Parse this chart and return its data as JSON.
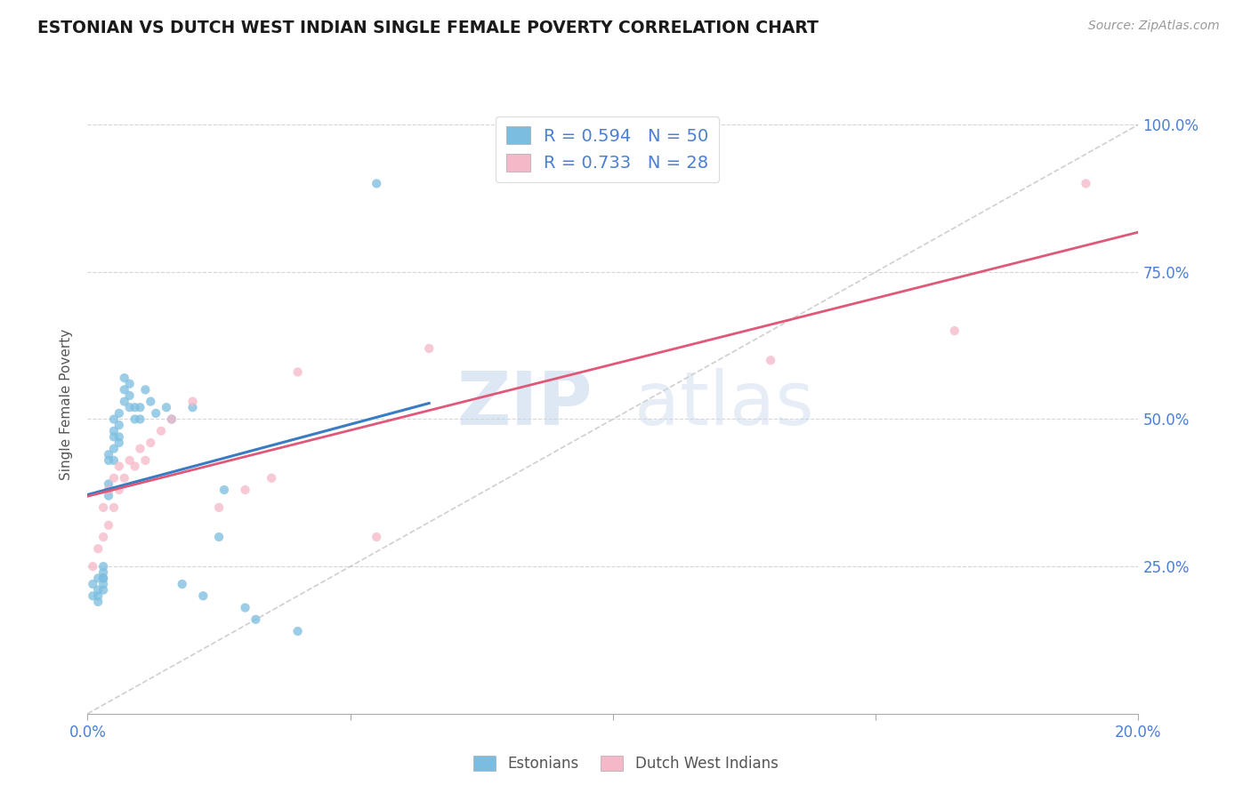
{
  "title": "ESTONIAN VS DUTCH WEST INDIAN SINGLE FEMALE POVERTY CORRELATION CHART",
  "source_text": "Source: ZipAtlas.com",
  "ylabel": "Single Female Poverty",
  "watermark_zip": "ZIP",
  "watermark_atlas": "atlas",
  "legend_label1": "Estonians",
  "legend_label2": "Dutch West Indians",
  "r1": 0.594,
  "n1": 50,
  "r2": 0.733,
  "n2": 28,
  "color1": "#7bbde0",
  "color2": "#f5b8c8",
  "line_color1": "#3a7cc4",
  "line_color2": "#e05878",
  "ref_line_color": "#bbbbbb",
  "axis_color": "#4a7fd4",
  "grid_color": "#cccccc",
  "title_color": "#1a1a1a",
  "background_color": "#ffffff",
  "xmin": 0.0,
  "xmax": 0.2,
  "ymin": 0.0,
  "ymax": 1.05,
  "yticks": [
    0.0,
    0.25,
    0.5,
    0.75,
    1.0
  ],
  "ytick_labels": [
    "",
    "25.0%",
    "50.0%",
    "75.0%",
    "100.0%"
  ],
  "xticks": [
    0.0,
    0.05,
    0.1,
    0.15,
    0.2
  ],
  "xtick_labels": [
    "0.0%",
    "",
    "",
    "",
    "20.0%"
  ],
  "estonians_x": [
    0.001,
    0.001,
    0.002,
    0.002,
    0.002,
    0.002,
    0.003,
    0.003,
    0.003,
    0.003,
    0.003,
    0.003,
    0.004,
    0.004,
    0.004,
    0.004,
    0.004,
    0.005,
    0.005,
    0.005,
    0.005,
    0.005,
    0.006,
    0.006,
    0.006,
    0.006,
    0.007,
    0.007,
    0.007,
    0.008,
    0.008,
    0.008,
    0.009,
    0.009,
    0.01,
    0.01,
    0.011,
    0.012,
    0.013,
    0.015,
    0.016,
    0.018,
    0.02,
    0.022,
    0.025,
    0.026,
    0.03,
    0.032,
    0.04,
    0.055
  ],
  "estonians_y": [
    0.2,
    0.22,
    0.19,
    0.21,
    0.23,
    0.2,
    0.21,
    0.23,
    0.22,
    0.24,
    0.25,
    0.23,
    0.37,
    0.38,
    0.39,
    0.43,
    0.44,
    0.43,
    0.45,
    0.47,
    0.48,
    0.5,
    0.46,
    0.47,
    0.49,
    0.51,
    0.53,
    0.55,
    0.57,
    0.52,
    0.54,
    0.56,
    0.5,
    0.52,
    0.5,
    0.52,
    0.55,
    0.53,
    0.51,
    0.52,
    0.5,
    0.22,
    0.52,
    0.2,
    0.3,
    0.38,
    0.18,
    0.16,
    0.14,
    0.9
  ],
  "dutch_x": [
    0.001,
    0.002,
    0.003,
    0.003,
    0.004,
    0.004,
    0.005,
    0.005,
    0.006,
    0.006,
    0.007,
    0.008,
    0.009,
    0.01,
    0.011,
    0.012,
    0.014,
    0.016,
    0.02,
    0.025,
    0.03,
    0.035,
    0.04,
    0.055,
    0.065,
    0.13,
    0.165,
    0.19
  ],
  "dutch_y": [
    0.25,
    0.28,
    0.3,
    0.35,
    0.32,
    0.38,
    0.35,
    0.4,
    0.38,
    0.42,
    0.4,
    0.43,
    0.42,
    0.45,
    0.43,
    0.46,
    0.48,
    0.5,
    0.53,
    0.35,
    0.38,
    0.4,
    0.58,
    0.3,
    0.62,
    0.6,
    0.65,
    0.9
  ]
}
